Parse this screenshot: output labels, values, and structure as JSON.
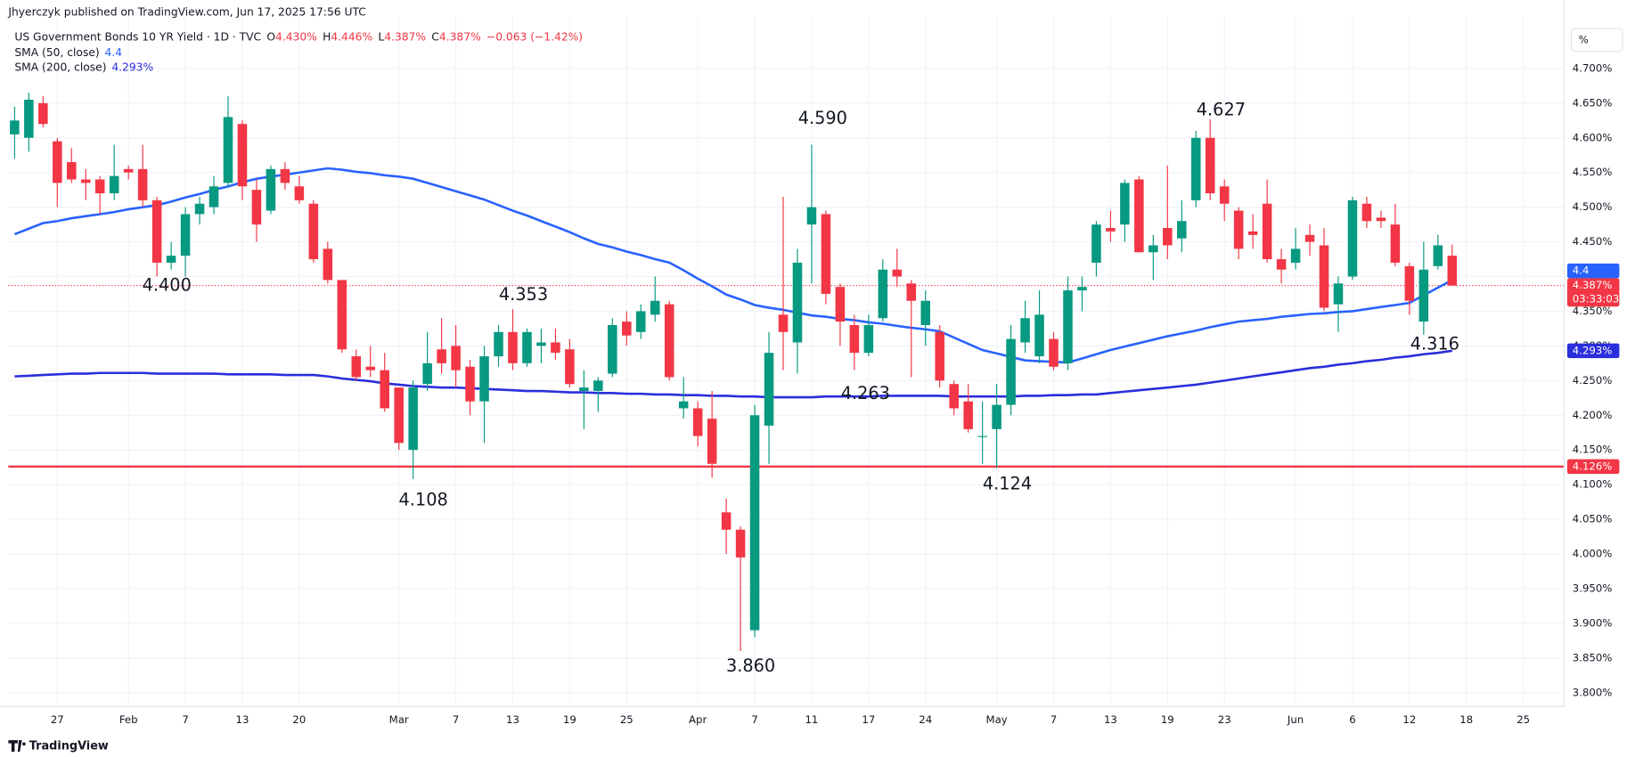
{
  "header": {
    "author_line": "Jhyerczyk published on TradingView.com, Jun 17, 2025 17:56 UTC",
    "symbol": "US Government Bonds 10 YR Yield · 1D · TVC",
    "o_key": "O",
    "open": "4.430%",
    "h_key": "H",
    "high": "4.446%",
    "l_key": "L",
    "low": "4.387%",
    "c_key": "C",
    "close": "4.387%",
    "change": "−0.063 (−1.42%)",
    "scale_button": "%",
    "brand": "TradingView"
  },
  "chart_data": {
    "type": "candlestick",
    "up_color": "#089981",
    "down_color": "#f23645",
    "categories": [
      null,
      null,
      null,
      "27",
      null,
      null,
      null,
      null,
      "Feb",
      null,
      null,
      null,
      "7",
      null,
      null,
      null,
      "13",
      null,
      null,
      null,
      "20",
      null,
      null,
      null,
      null,
      null,
      null,
      "Mar",
      null,
      null,
      null,
      "7",
      null,
      null,
      null,
      "13",
      null,
      null,
      null,
      "19",
      null,
      null,
      null,
      "25",
      null,
      null,
      null,
      null,
      "Apr",
      null,
      null,
      null,
      "7",
      null,
      null,
      null,
      "11",
      null,
      null,
      null,
      "17",
      null,
      null,
      null,
      "24",
      null,
      null,
      null,
      null,
      "May",
      null,
      null,
      null,
      "7",
      null,
      null,
      null,
      "13",
      null,
      null,
      null,
      "19",
      null,
      null,
      null,
      "23",
      null,
      null,
      null,
      null,
      "Jun",
      null,
      null,
      null,
      "6",
      null,
      null,
      null,
      "12",
      null,
      null,
      null,
      "18",
      null,
      null,
      null,
      "25",
      null,
      null
    ],
    "open": [
      4.605,
      4.6,
      4.65,
      4.595,
      4.565,
      4.54,
      4.54,
      4.52,
      4.555,
      4.555,
      4.51,
      4.42,
      4.43,
      4.49,
      4.5,
      4.535,
      4.62,
      4.525,
      4.495,
      4.555,
      4.53,
      4.505,
      4.44,
      4.395,
      4.285,
      4.27,
      4.265,
      4.24,
      4.15,
      4.245,
      4.295,
      4.3,
      4.27,
      4.22,
      4.285,
      4.32,
      4.275,
      4.3,
      4.305,
      4.295,
      4.235,
      4.235,
      4.26,
      4.335,
      4.32,
      4.345,
      4.36,
      4.21,
      4.21,
      4.195,
      4.06,
      4.035,
      3.89,
      4.185,
      4.345,
      4.305,
      4.475,
      4.49,
      4.385,
      4.33,
      4.29,
      4.34,
      4.41,
      4.39,
      4.33,
      4.32,
      4.245,
      4.22,
      4.17,
      4.18,
      4.215,
      4.305,
      4.285,
      4.31,
      4.275,
      4.38,
      4.42,
      4.47,
      4.475,
      4.54,
      4.435,
      4.47,
      4.455,
      4.51,
      4.6,
      4.53,
      4.495,
      4.465,
      4.505,
      4.425,
      4.42,
      4.46,
      4.445,
      4.36,
      4.4,
      4.505,
      4.485,
      4.475,
      4.415,
      4.335,
      4.415,
      4.43,
      null,
      null,
      null,
      null,
      null,
      null,
      null
    ],
    "high": [
      4.645,
      4.665,
      4.66,
      4.6,
      4.585,
      4.555,
      4.545,
      4.59,
      4.56,
      4.59,
      4.515,
      4.45,
      4.5,
      4.515,
      4.545,
      4.66,
      4.625,
      4.54,
      4.56,
      4.565,
      4.545,
      4.51,
      4.45,
      4.395,
      4.295,
      4.3,
      4.29,
      4.24,
      4.25,
      4.32,
      4.34,
      4.33,
      4.28,
      4.3,
      4.33,
      4.353,
      4.325,
      4.325,
      4.325,
      4.31,
      4.265,
      4.255,
      4.34,
      4.35,
      4.36,
      4.4,
      4.365,
      4.255,
      4.22,
      4.235,
      4.08,
      4.04,
      4.215,
      4.32,
      4.515,
      4.44,
      4.59,
      4.495,
      4.39,
      4.345,
      4.345,
      4.425,
      4.44,
      4.395,
      4.38,
      4.33,
      4.25,
      4.245,
      4.22,
      4.245,
      4.33,
      4.365,
      4.38,
      4.32,
      4.4,
      4.4,
      4.48,
      4.495,
      4.54,
      4.545,
      4.46,
      4.56,
      4.51,
      4.61,
      4.627,
      4.54,
      4.5,
      4.49,
      4.54,
      4.44,
      4.47,
      4.475,
      4.47,
      4.4,
      4.515,
      4.515,
      4.495,
      4.505,
      4.42,
      4.45,
      4.46,
      4.446,
      null,
      null,
      null,
      null,
      null,
      null,
      null
    ],
    "low": [
      4.57,
      4.58,
      4.615,
      4.5,
      4.535,
      4.51,
      4.49,
      4.51,
      4.54,
      4.5,
      4.4,
      4.41,
      4.4,
      4.475,
      4.49,
      4.53,
      4.51,
      4.45,
      4.49,
      4.525,
      4.505,
      4.42,
      4.39,
      4.29,
      4.25,
      4.255,
      4.205,
      4.15,
      4.108,
      4.235,
      4.26,
      4.24,
      4.2,
      4.16,
      4.27,
      4.265,
      4.27,
      4.275,
      4.28,
      4.24,
      4.18,
      4.205,
      4.255,
      4.3,
      4.31,
      4.335,
      4.25,
      4.195,
      4.155,
      4.11,
      4.0,
      3.86,
      3.88,
      4.13,
      4.265,
      4.26,
      4.39,
      4.36,
      4.3,
      4.265,
      4.285,
      4.335,
      4.385,
      4.255,
      4.3,
      4.24,
      4.2,
      4.175,
      4.13,
      4.124,
      4.2,
      4.29,
      4.275,
      4.265,
      4.265,
      4.35,
      4.4,
      4.45,
      4.45,
      4.435,
      4.395,
      4.425,
      4.435,
      4.5,
      4.51,
      4.48,
      4.425,
      4.44,
      4.42,
      4.39,
      4.41,
      4.43,
      4.35,
      4.32,
      4.395,
      4.47,
      4.47,
      4.415,
      4.345,
      4.316,
      4.41,
      4.387,
      null,
      null,
      null,
      null,
      null,
      null,
      null
    ],
    "close": [
      4.625,
      4.655,
      4.62,
      4.535,
      4.54,
      4.535,
      4.52,
      4.545,
      4.55,
      4.51,
      4.42,
      4.43,
      4.49,
      4.505,
      4.53,
      4.63,
      4.53,
      4.475,
      4.555,
      4.535,
      4.51,
      4.425,
      4.395,
      4.295,
      4.255,
      4.265,
      4.21,
      4.16,
      4.24,
      4.275,
      4.275,
      4.265,
      4.22,
      4.285,
      4.32,
      4.275,
      4.32,
      4.305,
      4.29,
      4.245,
      4.24,
      4.25,
      4.33,
      4.315,
      4.35,
      4.365,
      4.255,
      4.22,
      4.17,
      4.13,
      4.035,
      3.995,
      4.2,
      4.29,
      4.32,
      4.42,
      4.5,
      4.375,
      4.335,
      4.29,
      4.33,
      4.41,
      4.4,
      4.365,
      4.365,
      4.25,
      4.21,
      4.18,
      4.17,
      4.215,
      4.31,
      4.34,
      4.345,
      4.27,
      4.38,
      4.385,
      4.475,
      4.465,
      4.535,
      4.435,
      4.445,
      4.445,
      4.48,
      4.6,
      4.52,
      4.505,
      4.44,
      4.46,
      4.425,
      4.41,
      4.44,
      4.45,
      4.355,
      4.39,
      4.51,
      4.48,
      4.48,
      4.42,
      4.365,
      4.41,
      4.445,
      4.387,
      null,
      null,
      null,
      null,
      null,
      null,
      null
    ],
    "series": [
      {
        "name": "SMA (50, close)",
        "value_label": "4.4",
        "color": "#2962ff",
        "values": [
          4.461,
          4.469,
          4.477,
          4.48,
          4.484,
          4.487,
          4.49,
          4.493,
          4.497,
          4.5,
          4.503,
          4.508,
          4.514,
          4.519,
          4.525,
          4.53,
          4.536,
          4.541,
          4.544,
          4.547,
          4.55,
          4.553,
          4.556,
          4.554,
          4.551,
          4.549,
          4.546,
          4.544,
          4.541,
          4.535,
          4.529,
          4.523,
          4.517,
          4.511,
          4.503,
          4.495,
          4.488,
          4.48,
          4.472,
          4.464,
          4.455,
          4.447,
          4.442,
          4.436,
          4.431,
          4.425,
          4.42,
          4.409,
          4.397,
          4.386,
          4.374,
          4.367,
          4.359,
          4.355,
          4.352,
          4.348,
          4.344,
          4.342,
          4.339,
          4.337,
          4.334,
          4.332,
          4.329,
          4.326,
          4.324,
          4.321,
          4.312,
          4.303,
          4.294,
          4.289,
          4.284,
          4.279,
          4.278,
          4.277,
          4.276,
          4.282,
          4.288,
          4.294,
          4.299,
          4.304,
          4.309,
          4.314,
          4.318,
          4.322,
          4.327,
          4.331,
          4.335,
          4.337,
          4.339,
          4.342,
          4.344,
          4.346,
          4.347,
          4.349,
          4.35,
          4.353,
          4.356,
          4.359,
          4.362,
          4.373,
          4.384,
          4.395,
          null,
          null,
          null,
          null,
          null,
          null,
          null
        ]
      },
      {
        "name": "SMA (200, close)",
        "value_label": "4.293%",
        "color": "#2a2edb",
        "values": [
          4.256,
          4.257,
          4.258,
          4.259,
          4.26,
          4.26,
          4.261,
          4.261,
          4.261,
          4.261,
          4.26,
          4.26,
          4.26,
          4.26,
          4.26,
          4.259,
          4.259,
          4.259,
          4.259,
          4.258,
          4.258,
          4.258,
          4.256,
          4.253,
          4.251,
          4.249,
          4.246,
          4.244,
          4.242,
          4.241,
          4.24,
          4.24,
          4.239,
          4.238,
          4.237,
          4.236,
          4.235,
          4.235,
          4.234,
          4.233,
          4.233,
          4.232,
          4.232,
          4.231,
          4.231,
          4.23,
          4.23,
          4.229,
          4.229,
          4.228,
          4.228,
          4.227,
          4.227,
          4.226,
          4.226,
          4.226,
          4.226,
          4.227,
          4.227,
          4.227,
          4.227,
          4.228,
          4.228,
          4.228,
          4.228,
          4.228,
          4.227,
          4.227,
          4.227,
          4.227,
          4.227,
          4.228,
          4.228,
          4.229,
          4.229,
          4.23,
          4.23,
          4.232,
          4.234,
          4.236,
          4.238,
          4.24,
          4.242,
          4.244,
          4.247,
          4.25,
          4.253,
          4.256,
          4.259,
          4.262,
          4.265,
          4.268,
          4.27,
          4.273,
          4.275,
          4.278,
          4.28,
          4.283,
          4.285,
          4.288,
          4.29,
          4.293,
          null,
          null,
          null,
          null,
          null,
          null,
          null
        ]
      }
    ],
    "hline": {
      "value": 4.126,
      "color": "#f23645"
    },
    "price_tags": [
      {
        "label": "4.387%",
        "value": 4.387,
        "color": "#f23645",
        "countdown": "03:33:03"
      },
      {
        "label": "4.4",
        "value": 4.4,
        "color": "#2962ff"
      },
      {
        "label": "4.293%",
        "value": 4.293,
        "color": "#2a2edb"
      },
      {
        "label": "4.126%",
        "value": 4.126,
        "color": "#f23645"
      }
    ],
    "annotations": [
      {
        "text": "4.400"
      },
      {
        "text": "4.108"
      },
      {
        "text": "4.353"
      },
      {
        "text": "3.860"
      },
      {
        "text": "4.590"
      },
      {
        "text": "4.263"
      },
      {
        "text": "4.124"
      },
      {
        "text": "4.627"
      },
      {
        "text": "4.316"
      }
    ],
    "ylim": [
      3.78,
      4.776
    ],
    "yticks": [
      {
        "value": 3.8,
        "label": "3.800%"
      },
      {
        "value": 3.85,
        "label": "3.850%"
      },
      {
        "value": 3.9,
        "label": "3.900%"
      },
      {
        "value": 3.95,
        "label": "3.950%"
      },
      {
        "value": 4.0,
        "label": "4.000%"
      },
      {
        "value": 4.05,
        "label": "4.050%"
      },
      {
        "value": 4.1,
        "label": "4.100%"
      },
      {
        "value": 4.15,
        "label": "4.150%"
      },
      {
        "value": 4.2,
        "label": "4.200%"
      },
      {
        "value": 4.25,
        "label": "4.250%"
      },
      {
        "value": 4.3,
        "label": "4.300%"
      },
      {
        "value": 4.35,
        "label": "4.350%"
      },
      {
        "value": 4.4,
        "label": "4.400%"
      },
      {
        "value": 4.45,
        "label": "4.450%"
      },
      {
        "value": 4.5,
        "label": "4.500%"
      },
      {
        "value": 4.55,
        "label": "4.550%"
      },
      {
        "value": 4.6,
        "label": "4.600%"
      },
      {
        "value": 4.65,
        "label": "4.650%"
      },
      {
        "value": 4.7,
        "label": "4.700%"
      }
    ],
    "grid": true
  }
}
